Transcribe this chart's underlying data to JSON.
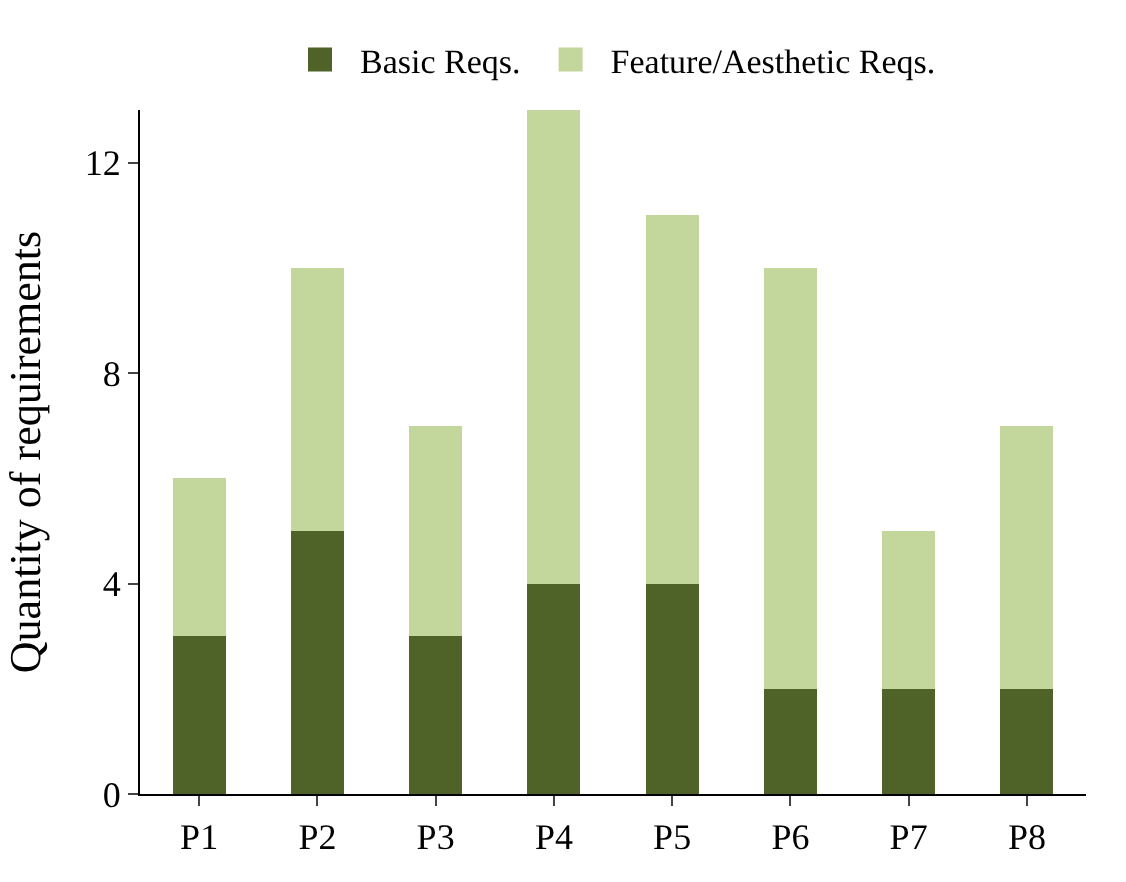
{
  "chart_data": {
    "type": "bar",
    "stacked": true,
    "ylabel": "Quantity of requirements",
    "categories": [
      "P1",
      "P2",
      "P3",
      "P4",
      "P5",
      "P6",
      "P7",
      "P8"
    ],
    "series": [
      {
        "name": "Basic Reqs.",
        "color": "#4f6228",
        "values": [
          3,
          5,
          3,
          4,
          4,
          2,
          2,
          2
        ]
      },
      {
        "name": "Feature/Aesthetic Reqs.",
        "color": "#c3d69b",
        "values": [
          3,
          5,
          4,
          9,
          7,
          8,
          3,
          5
        ]
      }
    ],
    "ylim": [
      0,
      13
    ],
    "yticks": [
      0,
      4,
      8,
      12
    ],
    "legend": "top"
  }
}
